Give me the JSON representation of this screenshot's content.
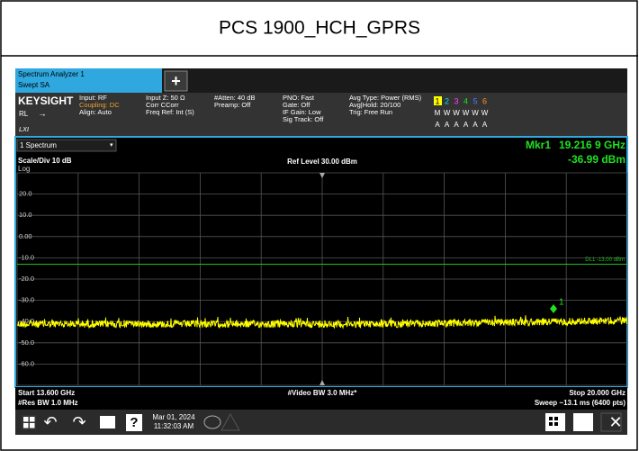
{
  "title": "PCS 1900_HCH_GPRS",
  "tab": {
    "line1": "Spectrum Analyzer 1",
    "line2": "Swept SA",
    "add": "+"
  },
  "info": {
    "brand": "KEYSIGHT",
    "rl": "RL",
    "lxi": "LXI",
    "columns": [
      [
        "Input: RF",
        "Coupling: DC",
        "Align: Auto"
      ],
      [
        "Input Z: 50 Ω",
        "Corr CCorr",
        "Freq Ref: Int (S)"
      ],
      [
        "#Atten: 40 dB",
        "Preamp: Off"
      ],
      [
        "PNO: Fast",
        "Gate: Off",
        "IF Gain: Low",
        "Sig Track: Off"
      ],
      [
        "Avg Type: Power (RMS)",
        "Avg|Hold: 20/100",
        "Trig: Free Run"
      ]
    ]
  },
  "traces": {
    "numbers": [
      "1",
      "2",
      "3",
      "4",
      "5",
      "6"
    ],
    "types": [
      "M",
      "W",
      "W",
      "W",
      "W",
      "W"
    ],
    "detectors": [
      "A",
      "A",
      "A",
      "A",
      "A",
      "A"
    ]
  },
  "display": {
    "window": "1 Spectrum",
    "marker_name": "Mkr1",
    "marker_freq": "19.216 9 GHz",
    "marker_level": "-36.99 dBm",
    "scale": "Scale/Div 10 dB",
    "ref": "Ref Level 30.00 dBm",
    "log": "Log",
    "y_labels": [
      "20.0",
      "10.0",
      "0.00",
      "-10.0",
      "-20.0",
      "-30.0",
      "-40.0",
      "-50.0",
      "-60.0"
    ],
    "dl": "DL1 -13.00 dBm",
    "marker_label": "1"
  },
  "footer": {
    "start": "Start 13.600 GHz",
    "vbw": "#Video BW 3.0 MHz*",
    "stop": "Stop 20.000 GHz",
    "rbw": "#Res BW 1.0 MHz",
    "sweep": "Sweep ~13.1 ms (6400 pts)"
  },
  "taskbar": {
    "help": "?",
    "date": "Mar 01, 2024",
    "time": "11:32:03 AM"
  }
}
